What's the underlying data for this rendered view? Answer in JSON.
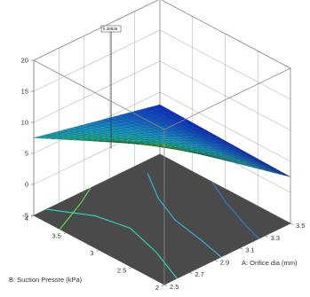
{
  "chart_data": {
    "type": "surface3d",
    "title": "",
    "flag_label": "6.38936",
    "x_axis": {
      "label": "A: Orifice dia (mm)",
      "ticks": [
        "2.5",
        "2.7",
        "2.9",
        "3.1",
        "3.3",
        "3.5"
      ],
      "range": [
        2.5,
        3.5
      ]
    },
    "y_axis": {
      "label": "B: Suction Pressre (kPa)",
      "ticks": [
        "2",
        "2.5",
        "3",
        "3.5",
        "4"
      ],
      "range": [
        2,
        4
      ]
    },
    "z_axis": {
      "label": "",
      "ticks": [
        "-5",
        "0",
        "5",
        "10",
        "15",
        "20"
      ],
      "range": [
        -5,
        20
      ]
    },
    "surface_corners": [
      {
        "x": 2.5,
        "y": 2,
        "z": 17.5
      },
      {
        "x": 3.5,
        "y": 2,
        "z": 2.5
      },
      {
        "x": 2.5,
        "y": 4,
        "z": 7.5
      },
      {
        "x": 3.5,
        "y": 4,
        "z": 3
      }
    ],
    "floor_contours": true,
    "colormap": "green-cyan-blue",
    "grid": true
  }
}
